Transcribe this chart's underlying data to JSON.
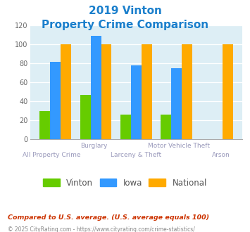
{
  "title_line1": "2019 Vinton",
  "title_line2": "Property Crime Comparison",
  "title_color": "#1a7fcc",
  "categories": [
    "All Property Crime",
    "Burglary",
    "Larceny & Theft",
    "Motor Vehicle Theft",
    "Arson"
  ],
  "x_labels_top": [
    "",
    "Burglary",
    "",
    "Motor Vehicle Theft",
    ""
  ],
  "x_labels_bottom": [
    "All Property Crime",
    "",
    "Larceny & Theft",
    "",
    "Arson"
  ],
  "vinton": [
    30,
    47,
    26,
    26,
    0
  ],
  "iowa": [
    82,
    109,
    78,
    75,
    0
  ],
  "national": [
    100,
    100,
    100,
    100,
    100
  ],
  "vinton_color": "#66cc00",
  "iowa_color": "#3399ff",
  "national_color": "#ffaa00",
  "bg_color": "#ddeef5",
  "ylim": [
    0,
    120
  ],
  "yticks": [
    0,
    20,
    40,
    60,
    80,
    100,
    120
  ],
  "legend_labels": [
    "Vinton",
    "Iowa",
    "National"
  ],
  "footnote1": "Compared to U.S. average. (U.S. average equals 100)",
  "footnote2": "© 2025 CityRating.com - https://www.cityrating.com/crime-statistics/",
  "footnote1_color": "#cc3300",
  "footnote2_color": "#888888",
  "label_color": "#9999bb",
  "bar_width": 0.26
}
